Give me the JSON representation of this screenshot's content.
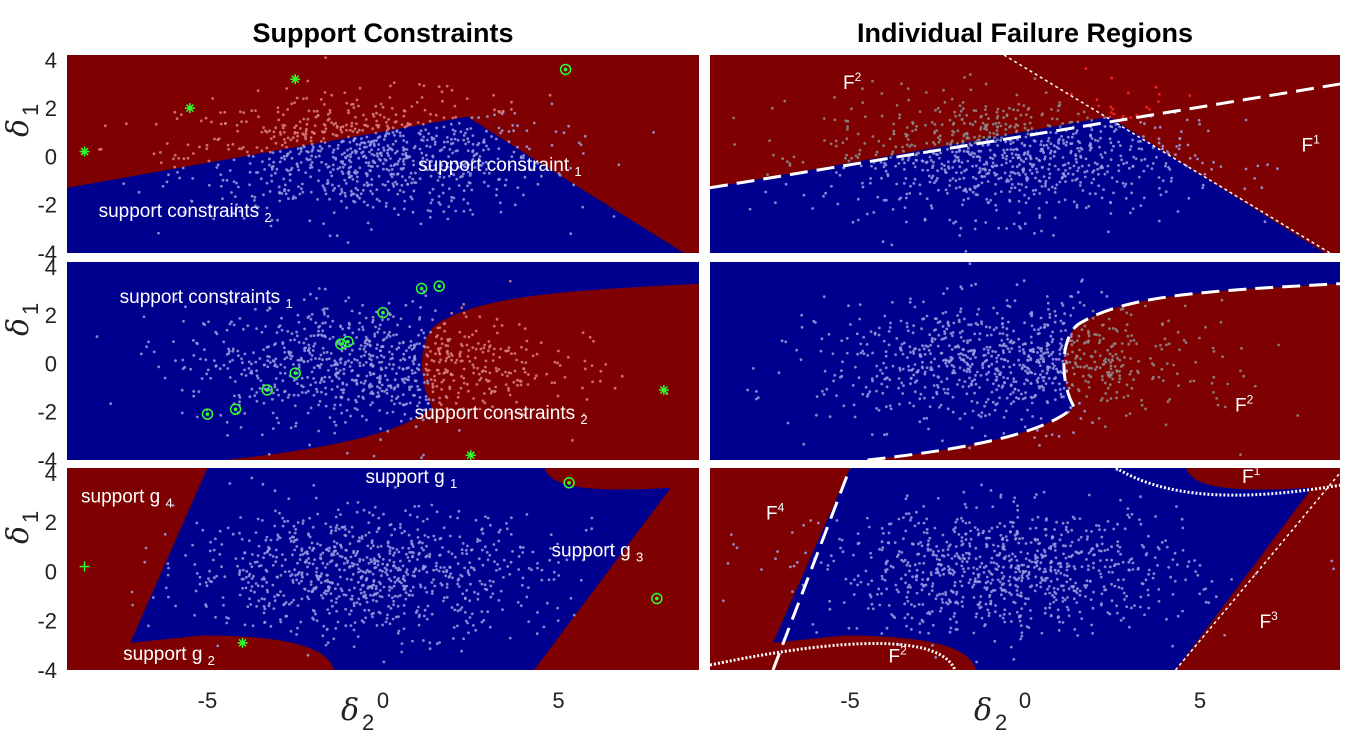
{
  "column_titles": [
    "Support Constraints",
    "Individual Failure Regions"
  ],
  "colors": {
    "safe_region": "#00008f",
    "failure_region": "#7f0000",
    "safe_samples": "#9a9ee0",
    "failure_samples_pink": "#d98080",
    "failure_samples_grey": "#8c8c8c",
    "failure_samples_red": "#ff2a2a",
    "support_marker": "#2eff2e",
    "annotation": "#ffffff"
  },
  "axis_labels": {
    "y_symbol": "δ",
    "y_subscript": "1",
    "x_symbol": "δ",
    "x_subscript": "2"
  },
  "chart_data": [
    {
      "type": "scatter",
      "panel": "row1-left",
      "title": "Support Constraints",
      "xlabel": "δ2",
      "ylabel": "δ1",
      "xlim": [
        -9,
        9
      ],
      "ylim": [
        -4,
        4.2
      ],
      "xticks": [
        -5,
        0,
        5
      ],
      "yticks": [
        4,
        2,
        0,
        -2,
        -4
      ],
      "show_xticks": false,
      "safe_boundary": [
        [
          -9,
          -1.3
        ],
        [
          2.5,
          1.6
        ],
        [
          6.0,
          -1.2
        ],
        [
          8.0,
          -4.0
        ]
      ],
      "support_points": [
        {
          "x": -8.5,
          "y": 0.2,
          "marker": "star"
        },
        {
          "x": -5.5,
          "y": 2.0,
          "marker": "star"
        },
        {
          "x": -2.5,
          "y": 3.2,
          "marker": "star"
        },
        {
          "x": 5.2,
          "y": 3.6,
          "marker": "circle"
        }
      ],
      "annotations": [
        {
          "text": "support constraints",
          "sub": "2",
          "x": -8.1,
          "y": -2.5
        },
        {
          "text": "support constraint",
          "sub": "1",
          "x": 1.0,
          "y": -0.6
        }
      ]
    },
    {
      "type": "scatter",
      "panel": "row1-right",
      "title": "Individual Failure Regions",
      "xlim": [
        -9,
        9
      ],
      "ylim": [
        -4,
        4.2
      ],
      "xticks": [
        -5,
        0,
        5
      ],
      "yticks": [
        4,
        2,
        0,
        -2,
        -4
      ],
      "show_xticks": false,
      "boundaries": [
        {
          "style": "dashed",
          "points": [
            [
              -9,
              -1.3
            ],
            [
              9,
              3.0
            ]
          ]
        },
        {
          "style": "dotted",
          "points": [
            [
              -0.6,
              4.2
            ],
            [
              9,
              -4.2
            ]
          ]
        }
      ],
      "region_labels": [
        {
          "text": "F",
          "sup": "2",
          "x": -5.2,
          "y": 2.8
        },
        {
          "text": "F",
          "sup": "1",
          "x": 7.9,
          "y": 0.2
        }
      ]
    },
    {
      "type": "scatter",
      "panel": "row2-left",
      "xlim": [
        -9,
        9
      ],
      "ylim": [
        -4,
        4.2
      ],
      "xticks": [
        -5,
        0,
        5
      ],
      "yticks": [
        4,
        2,
        0,
        -2,
        -4
      ],
      "show_xticks": false,
      "support_points": [
        {
          "x": 1.1,
          "y": 3.1,
          "marker": "circle"
        },
        {
          "x": 1.6,
          "y": 3.2,
          "marker": "circle"
        },
        {
          "x": 0.0,
          "y": 2.1,
          "marker": "circle"
        },
        {
          "x": -1.2,
          "y": 0.8,
          "marker": "circle"
        },
        {
          "x": -1.0,
          "y": 0.9,
          "marker": "circle"
        },
        {
          "x": -2.5,
          "y": -0.4,
          "marker": "circle"
        },
        {
          "x": -3.3,
          "y": -1.1,
          "marker": "circle"
        },
        {
          "x": -4.2,
          "y": -1.9,
          "marker": "circle"
        },
        {
          "x": -5.0,
          "y": -2.1,
          "marker": "circle"
        },
        {
          "x": 8.0,
          "y": -1.1,
          "marker": "star"
        },
        {
          "x": 2.5,
          "y": -3.8,
          "marker": "star"
        }
      ],
      "annotations": [
        {
          "text": "support constraints",
          "sub": "1",
          "x": -7.5,
          "y": 2.5
        },
        {
          "text": "support constraints",
          "sub": "2",
          "x": 0.9,
          "y": -2.3
        }
      ]
    },
    {
      "type": "scatter",
      "panel": "row2-right",
      "xlim": [
        -9,
        9
      ],
      "ylim": [
        -4,
        4.2
      ],
      "xticks": [
        -5,
        0,
        5
      ],
      "yticks": [
        4,
        2,
        0,
        -2,
        -4
      ],
      "show_xticks": false,
      "region_labels": [
        {
          "text": "F",
          "sup": "2",
          "x": 6.0,
          "y": -2.0
        }
      ]
    },
    {
      "type": "scatter",
      "panel": "row3-left",
      "xlabel": "δ2",
      "ylabel": "δ1",
      "xlim": [
        -9,
        9
      ],
      "ylim": [
        -4,
        4.2
      ],
      "xticks": [
        -5,
        0,
        5
      ],
      "yticks": [
        4,
        2,
        0,
        -2,
        -4
      ],
      "show_xticks": true,
      "support_points": [
        {
          "x": -8.5,
          "y": 0.2,
          "marker": "plus"
        },
        {
          "x": 5.3,
          "y": 3.6,
          "marker": "circle"
        },
        {
          "x": 7.8,
          "y": -1.1,
          "marker": "circle"
        },
        {
          "x": -4.0,
          "y": -2.9,
          "marker": "star"
        }
      ],
      "annotations": [
        {
          "text": "support g",
          "sub": "4",
          "x": -8.6,
          "y": 2.8
        },
        {
          "text": "support g",
          "sub": "1",
          "x": -0.5,
          "y": 3.6
        },
        {
          "text": "support g",
          "sub": "3",
          "x": 4.8,
          "y": 0.6
        },
        {
          "text": "support g",
          "sub": "2",
          "x": -7.4,
          "y": -3.6
        }
      ]
    },
    {
      "type": "scatter",
      "panel": "row3-right",
      "xlim": [
        -9,
        9
      ],
      "ylim": [
        -4,
        4.2
      ],
      "xticks": [
        -5,
        0,
        5
      ],
      "yticks": [
        4,
        2,
        0,
        -2,
        -4
      ],
      "show_xticks": true,
      "region_labels": [
        {
          "text": "F",
          "sup": "4",
          "x": -7.4,
          "y": 2.1
        },
        {
          "text": "F",
          "sup": "1",
          "x": 6.2,
          "y": 3.6
        },
        {
          "text": "F",
          "sup": "3",
          "x": 6.7,
          "y": -2.3
        },
        {
          "text": "F",
          "sup": "2",
          "x": -3.9,
          "y": -3.7
        }
      ]
    }
  ]
}
